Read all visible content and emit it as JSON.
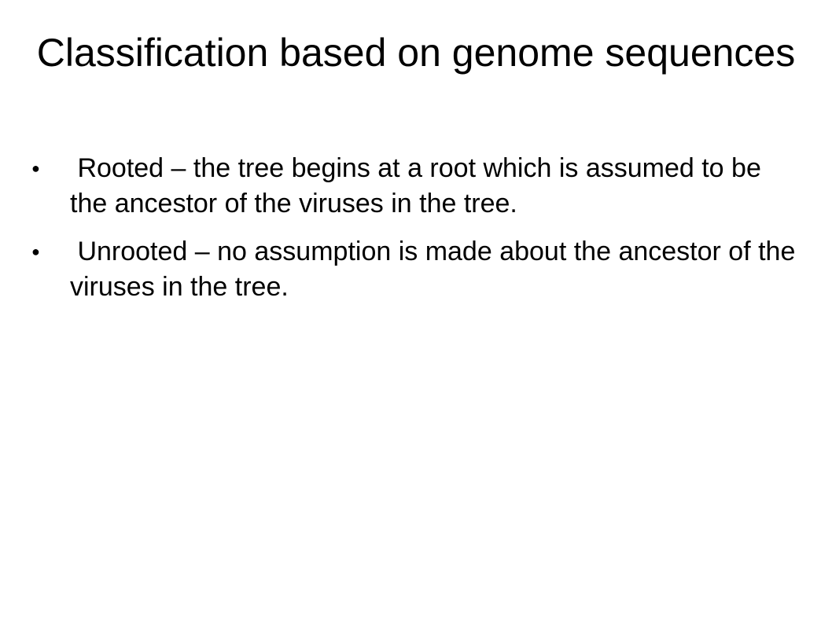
{
  "slide": {
    "title": "Classification based on genome sequences",
    "bullet_marker": "●",
    "bullets": [
      {
        "text": " Rooted – the tree begins at a root which is assumed to be the ancestor of the viruses in the tree."
      },
      {
        "text": " Unrooted – no assumption is made about the ancestor of the viruses in the tree."
      }
    ]
  }
}
